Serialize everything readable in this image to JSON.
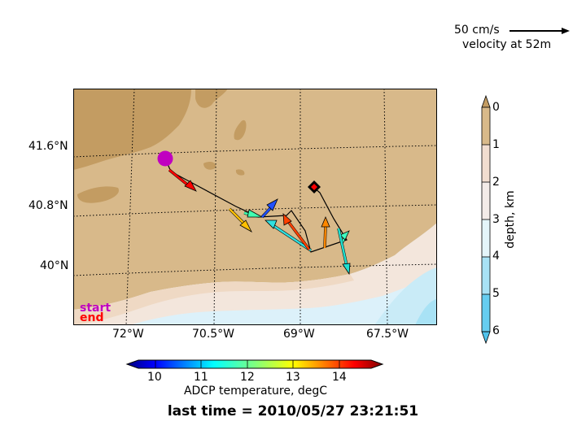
{
  "scale": {
    "speed_label": "50 cm/s",
    "caption": "velocity at 52m"
  },
  "map": {
    "lat_ticks": [
      "41.6°N",
      "40.8°N",
      "40°N"
    ],
    "lon_ticks": [
      "72°W",
      "70.5°W",
      "69°W",
      "67.5°W"
    ],
    "legend_start": "start",
    "legend_end": "end",
    "start_marker_color": "#c000c0",
    "end_marker_color": "#ff0000",
    "land_color": "#d8b98a"
  },
  "temperature_colorbar": {
    "ticks": [
      "10",
      "11",
      "12",
      "13",
      "14"
    ],
    "title": "ADCP temperature, degC"
  },
  "depth_colorbar": {
    "ticks": [
      "0",
      "1",
      "2",
      "3",
      "4",
      "5",
      "6"
    ],
    "title": "depth, km"
  },
  "footer": {
    "last_time": "last time = 2010/05/27 23:21:51"
  },
  "velocity_vectors": [
    {
      "color": "#ff0000"
    },
    {
      "color": "#ffc000"
    },
    {
      "color": "#40ffb0"
    },
    {
      "color": "#2050ff"
    },
    {
      "color": "#30e0e0"
    },
    {
      "color": "#ff4000"
    },
    {
      "color": "#ff8800"
    },
    {
      "color": "#40ffc0"
    },
    {
      "color": "#20e0d0"
    }
  ]
}
